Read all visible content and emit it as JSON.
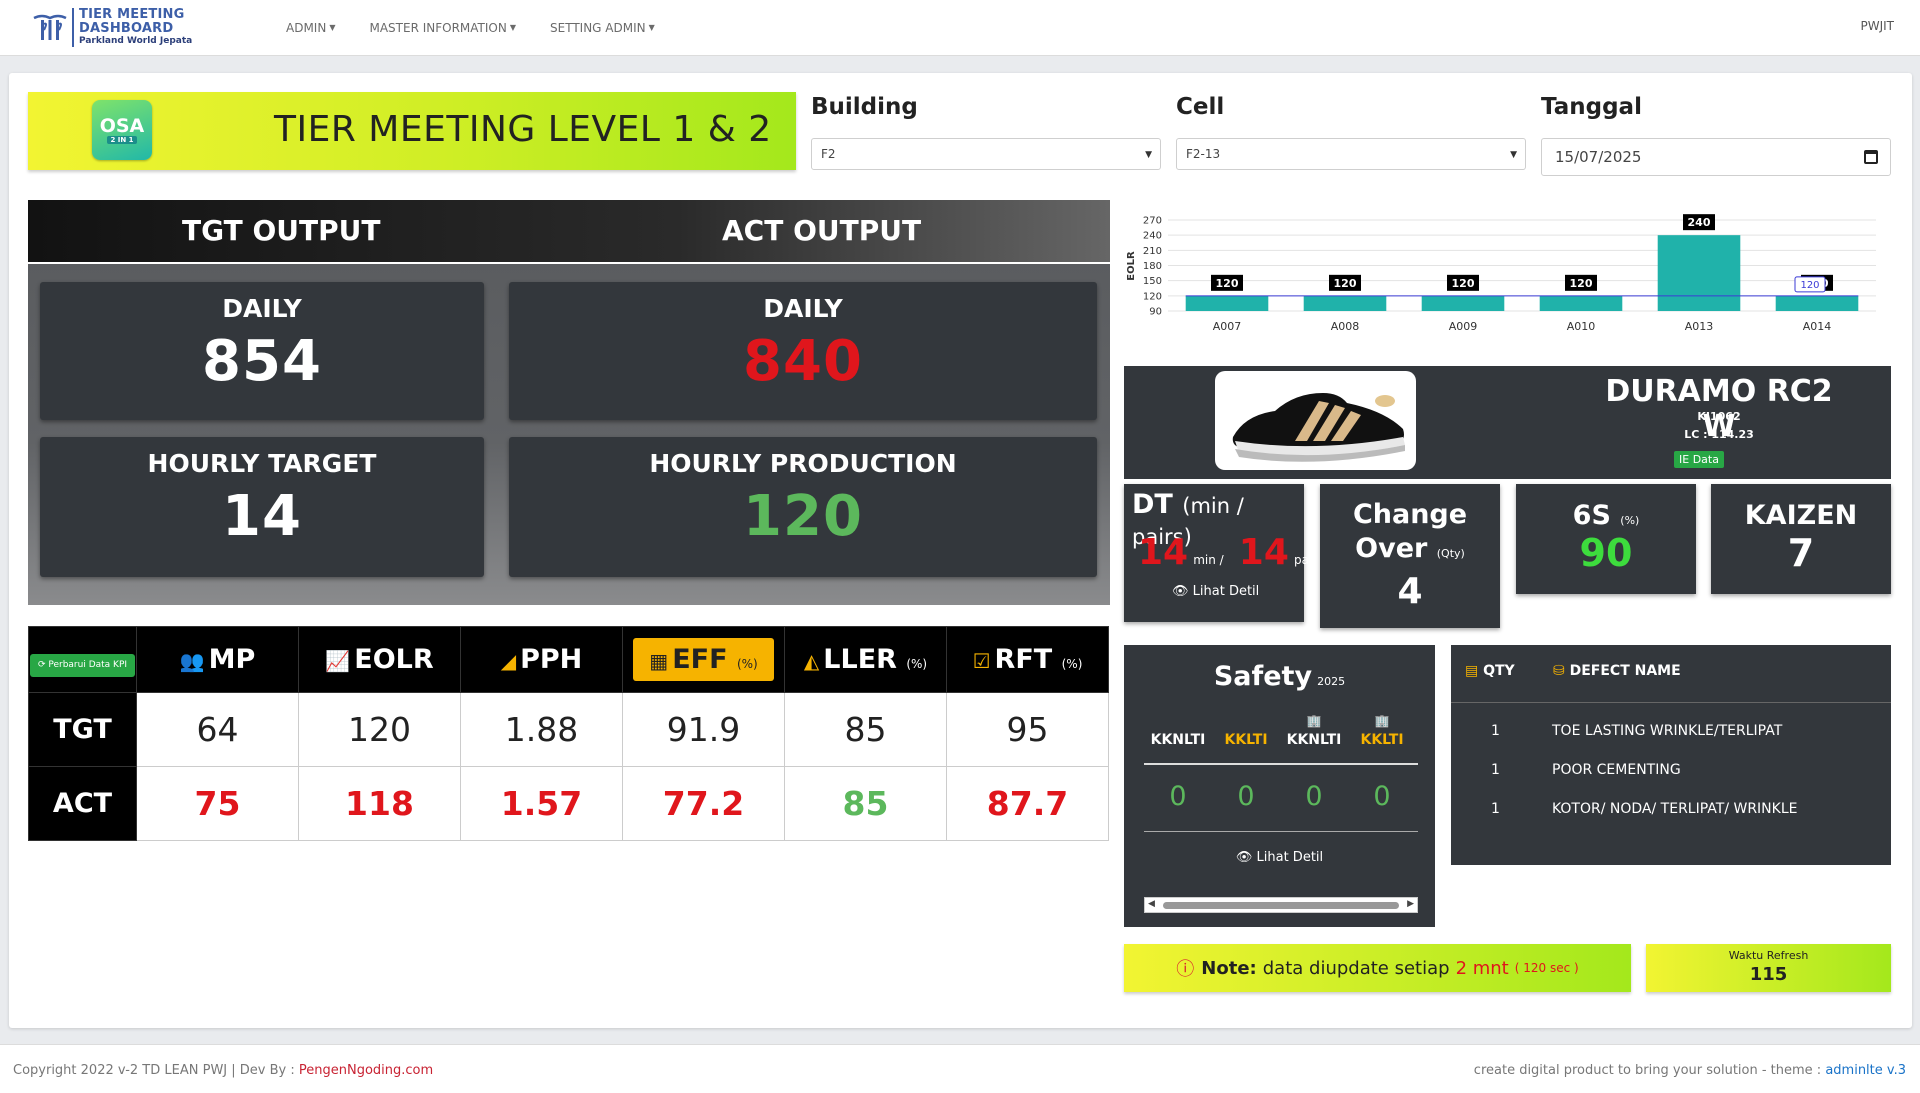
{
  "navbar": {
    "brand_title": "TIER MEETING DASHBOARD",
    "brand_subtitle": "Parkland World Jepata",
    "menu": [
      "ADMIN",
      "MASTER INFORMATION",
      "SETTING ADMIN"
    ],
    "user": "PWJIT"
  },
  "banner": {
    "badge_main": "OSA",
    "badge_sub": "2 IN 1",
    "title": "TIER MEETING LEVEL 1 & 2"
  },
  "filters": {
    "building_label": "Building",
    "building_value": "F2",
    "cell_label": "Cell",
    "cell_value": "F2-13",
    "date_label": "Tanggal",
    "date_value": "15/07/2025"
  },
  "output": {
    "tgt_header": "TGT OUTPUT",
    "act_header": "ACT OUTPUT",
    "tgt_daily_label": "DAILY",
    "tgt_daily_value": "854",
    "act_daily_label": "DAILY",
    "act_daily_value": "840",
    "hourly_target_label": "HOURLY TARGET",
    "hourly_target_value": "14",
    "hourly_prod_label": "HOURLY PRODUCTION",
    "hourly_prod_value": "120"
  },
  "kpi": {
    "refresh_button": "Perbarui Data KPI",
    "headers": [
      {
        "label": "MP",
        "unit": "",
        "icon": "users-icon"
      },
      {
        "label": "EOLR",
        "unit": "",
        "icon": "line-chart-icon"
      },
      {
        "label": "PPH",
        "unit": "",
        "icon": "signal-icon"
      },
      {
        "label": "EFF",
        "unit": "(%)",
        "icon": "table-icon"
      },
      {
        "label": "LLER",
        "unit": "(%)",
        "icon": "area-chart-icon"
      },
      {
        "label": "RFT",
        "unit": "(%)",
        "icon": "check-square-icon"
      }
    ],
    "tgt_label": "TGT",
    "act_label": "ACT",
    "tgt": [
      "64",
      "120",
      "1.88",
      "91.9",
      "85",
      "95"
    ],
    "act": [
      "75",
      "118",
      "1.57",
      "77.2",
      "85",
      "87.7"
    ],
    "colors": {
      "red": "#e0161c",
      "green": "#5cb85c",
      "eff_yellow": "#f6b300"
    }
  },
  "chart_data": {
    "type": "bar",
    "categories": [
      "A007",
      "A008",
      "A009",
      "A010",
      "A013",
      "A014"
    ],
    "values": [
      120,
      120,
      120,
      120,
      240,
      120
    ],
    "target_line": 120,
    "target_label": "120",
    "ylabel": "EOLR",
    "yticks": [
      90,
      120,
      150,
      180,
      210,
      240,
      270
    ],
    "ylim": [
      90,
      270
    ],
    "bar_color": "#20b2aa",
    "grid": true
  },
  "product": {
    "name": "DURAMO RC2 W",
    "code": "KJ1062",
    "lc": "LC : 114.23",
    "ie_button": "IE Data"
  },
  "dt": {
    "title": "DT",
    "unit": "(min / pairs)",
    "min_value": "14",
    "min_unit": "min /",
    "pairs_value": "14",
    "pairs_unit": "pairs",
    "detail_link": "Lihat Detil"
  },
  "changeover": {
    "title_line1": "Change",
    "title_line2": "Over",
    "unit": "(Qty)",
    "value": "4"
  },
  "six_s": {
    "title": "6S",
    "unit": "(%)",
    "value": "90"
  },
  "kaizen": {
    "title": "KAIZEN",
    "value": "7"
  },
  "safety": {
    "title": "Safety",
    "year": "2025",
    "columns": [
      "KKNLTI",
      "KKLTI",
      "KKNLTI",
      "KKLTI"
    ],
    "values": [
      "0",
      "0",
      "0",
      "0"
    ],
    "detail_link": "Lihat Detil"
  },
  "defects": {
    "qty_header": "QTY",
    "name_header": "DEFECT NAME",
    "rows": [
      {
        "qty": "1",
        "name": "TOE LASTING WRINKLE/TERLIPAT"
      },
      {
        "qty": "1",
        "name": "POOR CEMENTING"
      },
      {
        "qty": "1",
        "name": "KOTOR/ NODA/ TERLIPAT/ WRINKLE"
      }
    ]
  },
  "note": {
    "label": "Note:",
    "text": "data diupdate setiap",
    "interval": "2 mnt",
    "seconds": "( 120 sec )"
  },
  "refresh": {
    "label": "Waktu Refresh",
    "value": "115"
  },
  "footer": {
    "left_text": "Copyright 2022 v-2 TD LEAN PWJ | Dev By :",
    "left_link": "PengenNgoding.com",
    "right_text": "create digital product to bring your solution - theme :",
    "right_link": "adminlte v.3"
  }
}
